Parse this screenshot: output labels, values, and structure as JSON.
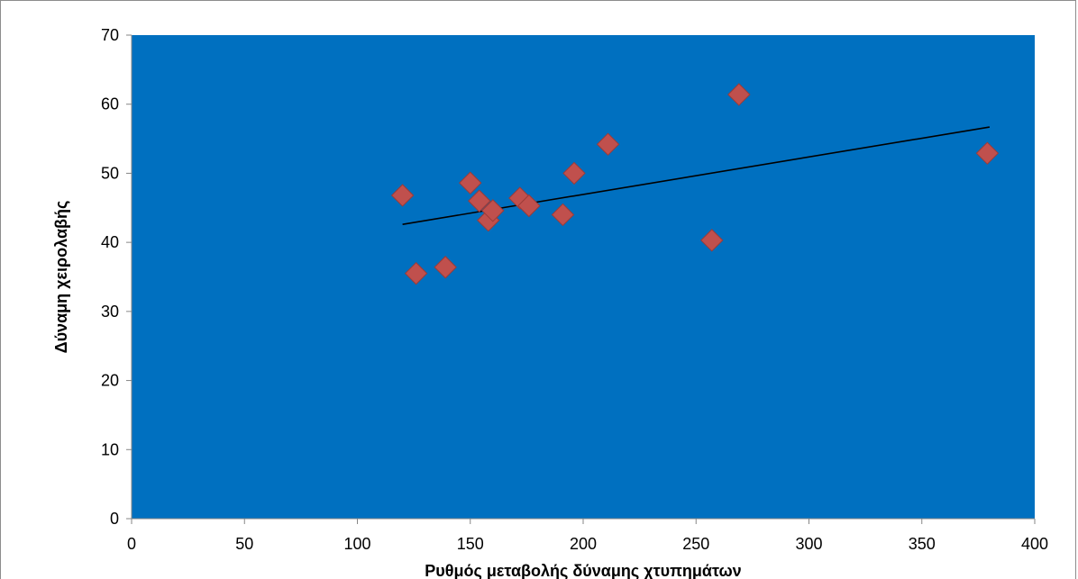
{
  "chart_data": {
    "type": "scatter",
    "title": "",
    "xlabel": "Ρυθμός μεταβολής δύναμης χτυπημάτων",
    "ylabel": "Δύναμη χειρολαβής",
    "xlim": [
      0,
      400
    ],
    "ylim": [
      0,
      70
    ],
    "x_ticks": [
      0,
      50,
      100,
      150,
      200,
      250,
      300,
      350,
      400
    ],
    "y_ticks": [
      0,
      10,
      20,
      30,
      40,
      50,
      60,
      70
    ],
    "grid": false,
    "legend": "none",
    "plot_background": "#0070C0",
    "marker_color": "#C0504D",
    "marker_shape": "diamond",
    "trendline": {
      "type": "linear",
      "x": [
        120,
        380
      ],
      "y": [
        42.6,
        56.7
      ],
      "color": "#000000"
    },
    "points": [
      {
        "x": 120,
        "y": 46.8
      },
      {
        "x": 126,
        "y": 35.5
      },
      {
        "x": 139,
        "y": 36.4
      },
      {
        "x": 150,
        "y": 48.6
      },
      {
        "x": 154,
        "y": 46.0
      },
      {
        "x": 158,
        "y": 43.2
      },
      {
        "x": 160,
        "y": 44.6
      },
      {
        "x": 172,
        "y": 46.4
      },
      {
        "x": 176,
        "y": 45.3
      },
      {
        "x": 191,
        "y": 44.0
      },
      {
        "x": 196,
        "y": 50.0
      },
      {
        "x": 211,
        "y": 54.2
      },
      {
        "x": 257,
        "y": 40.3
      },
      {
        "x": 269,
        "y": 61.4
      },
      {
        "x": 379,
        "y": 52.9
      }
    ]
  }
}
